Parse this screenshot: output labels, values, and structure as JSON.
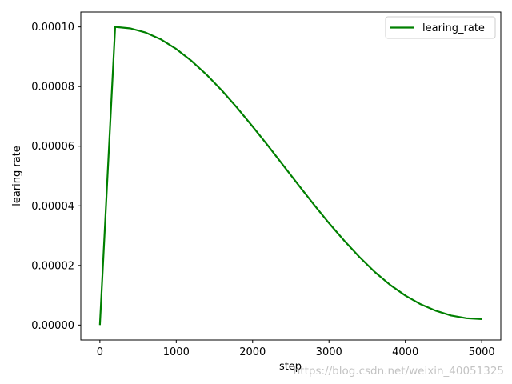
{
  "chart_data": {
    "type": "line",
    "title": "",
    "xlabel": "step",
    "ylabel": "learing rate",
    "xlim": [
      -250,
      5250
    ],
    "ylim": [
      -5e-06,
      0.000105
    ],
    "xticks": [
      0,
      1000,
      2000,
      3000,
      4000,
      5000
    ],
    "yticks": [
      0,
      2e-05,
      4e-05,
      6e-05,
      8e-05,
      0.0001
    ],
    "xtick_labels": [
      "0",
      "1000",
      "2000",
      "3000",
      "4000",
      "5000"
    ],
    "ytick_labels": [
      "0.00000",
      "0.00002",
      "0.00004",
      "0.00006",
      "0.00008",
      "0.00010"
    ],
    "grid": false,
    "legend": {
      "placement": "upper-right",
      "entries": [
        "learing_rate"
      ]
    },
    "series": [
      {
        "name": "learing_rate",
        "color": "#008000",
        "x": [
          0,
          200,
          400,
          600,
          800,
          1000,
          1200,
          1400,
          1600,
          1800,
          2000,
          2200,
          2400,
          2600,
          2800,
          3000,
          3200,
          3400,
          3600,
          3800,
          4000,
          4200,
          4400,
          4600,
          4800,
          5000
        ],
        "y": [
          0.0,
          0.0001,
          9.95e-05,
          9.81e-05,
          9.58e-05,
          9.26e-05,
          8.86e-05,
          8.39e-05,
          7.86e-05,
          7.28e-05,
          6.66e-05,
          6.02e-05,
          5.36e-05,
          4.7e-05,
          4.05e-05,
          3.42e-05,
          2.83e-05,
          2.28e-05,
          1.78e-05,
          1.35e-05,
          9.9e-06,
          7e-06,
          4.8e-06,
          3.2e-06,
          2.3e-06,
          2e-06
        ]
      }
    ]
  },
  "watermark": "https://blog.csdn.net/weixin_40051325"
}
